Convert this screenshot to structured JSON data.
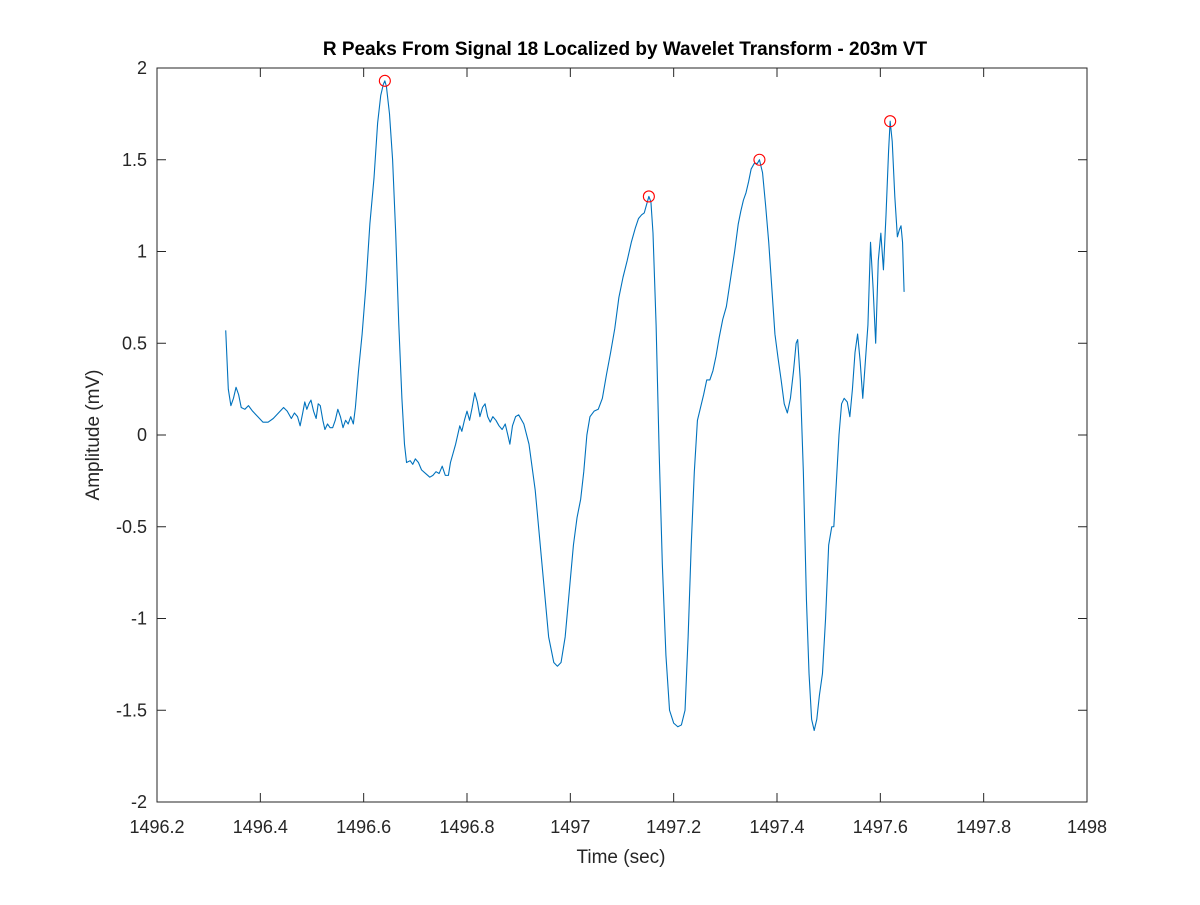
{
  "chart_data": {
    "type": "line",
    "title": "R Peaks From Signal 18 Localized by Wavelet Transform - 203m VT",
    "xlabel": "Time (sec)",
    "ylabel": "Amplitude (mV)",
    "xlim": [
      1496.2,
      1498
    ],
    "ylim": [
      -2,
      2
    ],
    "xticks": [
      1496.2,
      1496.4,
      1496.6,
      1496.8,
      1497,
      1497.2,
      1497.4,
      1497.6,
      1497.8,
      1498
    ],
    "xtick_labels": [
      "1496.2",
      "1496.4",
      "1496.6",
      "1496.8",
      "1497",
      "1497.2",
      "1497.4",
      "1497.6",
      "1497.8",
      "1498"
    ],
    "yticks": [
      -2,
      -1.5,
      -1,
      -0.5,
      0,
      0.5,
      1,
      1.5,
      2
    ],
    "ytick_labels": [
      "-2",
      "-1.5",
      "-1",
      "-0.5",
      "0",
      "0.5",
      "1",
      "1.5",
      "2"
    ],
    "grid": false,
    "box": true,
    "colors": {
      "signal": "#0072BD",
      "peaks": "#FF0000",
      "axes": "#262626"
    },
    "series": [
      {
        "marker": "none",
        "points": [
          [
            1496.333,
            0.57
          ],
          [
            1496.338,
            0.25
          ],
          [
            1496.343,
            0.16
          ],
          [
            1496.348,
            0.2
          ],
          [
            1496.353,
            0.26
          ],
          [
            1496.358,
            0.22
          ],
          [
            1496.363,
            0.15
          ],
          [
            1496.37,
            0.14
          ],
          [
            1496.377,
            0.16
          ],
          [
            1496.385,
            0.13
          ],
          [
            1496.395,
            0.1
          ],
          [
            1496.405,
            0.07
          ],
          [
            1496.415,
            0.07
          ],
          [
            1496.425,
            0.09
          ],
          [
            1496.435,
            0.12
          ],
          [
            1496.445,
            0.15
          ],
          [
            1496.452,
            0.13
          ],
          [
            1496.46,
            0.09
          ],
          [
            1496.466,
            0.12
          ],
          [
            1496.472,
            0.1
          ],
          [
            1496.477,
            0.05
          ],
          [
            1496.482,
            0.12
          ],
          [
            1496.486,
            0.18
          ],
          [
            1496.49,
            0.14
          ],
          [
            1496.494,
            0.17
          ],
          [
            1496.498,
            0.19
          ],
          [
            1496.503,
            0.13
          ],
          [
            1496.508,
            0.09
          ],
          [
            1496.512,
            0.17
          ],
          [
            1496.516,
            0.16
          ],
          [
            1496.521,
            0.08
          ],
          [
            1496.525,
            0.03
          ],
          [
            1496.53,
            0.06
          ],
          [
            1496.535,
            0.04
          ],
          [
            1496.54,
            0.04
          ],
          [
            1496.545,
            0.08
          ],
          [
            1496.55,
            0.14
          ],
          [
            1496.555,
            0.1
          ],
          [
            1496.56,
            0.04
          ],
          [
            1496.565,
            0.08
          ],
          [
            1496.57,
            0.06
          ],
          [
            1496.575,
            0.1
          ],
          [
            1496.58,
            0.06
          ],
          [
            1496.584,
            0.15
          ],
          [
            1496.59,
            0.35
          ],
          [
            1496.597,
            0.55
          ],
          [
            1496.604,
            0.8
          ],
          [
            1496.612,
            1.15
          ],
          [
            1496.62,
            1.4
          ],
          [
            1496.627,
            1.7
          ],
          [
            1496.633,
            1.85
          ],
          [
            1496.638,
            1.91
          ],
          [
            1496.641,
            1.93
          ],
          [
            1496.644,
            1.9
          ],
          [
            1496.65,
            1.75
          ],
          [
            1496.656,
            1.5
          ],
          [
            1496.662,
            1.1
          ],
          [
            1496.668,
            0.6
          ],
          [
            1496.674,
            0.2
          ],
          [
            1496.679,
            -0.05
          ],
          [
            1496.683,
            -0.15
          ],
          [
            1496.69,
            -0.14
          ],
          [
            1496.695,
            -0.16
          ],
          [
            1496.7,
            -0.13
          ],
          [
            1496.706,
            -0.15
          ],
          [
            1496.712,
            -0.19
          ],
          [
            1496.72,
            -0.21
          ],
          [
            1496.728,
            -0.23
          ],
          [
            1496.734,
            -0.22
          ],
          [
            1496.74,
            -0.2
          ],
          [
            1496.746,
            -0.21
          ],
          [
            1496.752,
            -0.17
          ],
          [
            1496.758,
            -0.22
          ],
          [
            1496.764,
            -0.22
          ],
          [
            1496.768,
            -0.15
          ],
          [
            1496.773,
            -0.1
          ],
          [
            1496.778,
            -0.05
          ],
          [
            1496.782,
            0.0
          ],
          [
            1496.786,
            0.05
          ],
          [
            1496.79,
            0.02
          ],
          [
            1496.795,
            0.08
          ],
          [
            1496.8,
            0.13
          ],
          [
            1496.805,
            0.08
          ],
          [
            1496.81,
            0.15
          ],
          [
            1496.815,
            0.23
          ],
          [
            1496.82,
            0.18
          ],
          [
            1496.825,
            0.1
          ],
          [
            1496.83,
            0.15
          ],
          [
            1496.835,
            0.17
          ],
          [
            1496.84,
            0.1
          ],
          [
            1496.845,
            0.07
          ],
          [
            1496.85,
            0.1
          ],
          [
            1496.856,
            0.08
          ],
          [
            1496.862,
            0.05
          ],
          [
            1496.868,
            0.03
          ],
          [
            1496.874,
            0.06
          ],
          [
            1496.879,
            0.0
          ],
          [
            1496.883,
            -0.05
          ],
          [
            1496.888,
            0.05
          ],
          [
            1496.894,
            0.1
          ],
          [
            1496.9,
            0.11
          ],
          [
            1496.91,
            0.06
          ],
          [
            1496.92,
            -0.05
          ],
          [
            1496.932,
            -0.3
          ],
          [
            1496.945,
            -0.7
          ],
          [
            1496.958,
            -1.1
          ],
          [
            1496.968,
            -1.24
          ],
          [
            1496.975,
            -1.26
          ],
          [
            1496.982,
            -1.24
          ],
          [
            1496.99,
            -1.1
          ],
          [
            1496.998,
            -0.85
          ],
          [
            1497.006,
            -0.6
          ],
          [
            1497.013,
            -0.45
          ],
          [
            1497.02,
            -0.35
          ],
          [
            1497.026,
            -0.2
          ],
          [
            1497.032,
            0.0
          ],
          [
            1497.038,
            0.1
          ],
          [
            1497.046,
            0.13
          ],
          [
            1497.054,
            0.14
          ],
          [
            1497.062,
            0.2
          ],
          [
            1497.07,
            0.33
          ],
          [
            1497.078,
            0.45
          ],
          [
            1497.086,
            0.58
          ],
          [
            1497.094,
            0.75
          ],
          [
            1497.102,
            0.86
          ],
          [
            1497.11,
            0.95
          ],
          [
            1497.118,
            1.05
          ],
          [
            1497.126,
            1.13
          ],
          [
            1497.132,
            1.18
          ],
          [
            1497.138,
            1.2
          ],
          [
            1497.143,
            1.21
          ],
          [
            1497.147,
            1.25
          ],
          [
            1497.152,
            1.3
          ],
          [
            1497.156,
            1.27
          ],
          [
            1497.16,
            1.1
          ],
          [
            1497.166,
            0.6
          ],
          [
            1497.172,
            -0.1
          ],
          [
            1497.178,
            -0.7
          ],
          [
            1497.185,
            -1.2
          ],
          [
            1497.192,
            -1.5
          ],
          [
            1497.2,
            -1.57
          ],
          [
            1497.208,
            -1.59
          ],
          [
            1497.215,
            -1.58
          ],
          [
            1497.222,
            -1.5
          ],
          [
            1497.228,
            -1.1
          ],
          [
            1497.234,
            -0.6
          ],
          [
            1497.24,
            -0.2
          ],
          [
            1497.246,
            0.08
          ],
          [
            1497.252,
            0.15
          ],
          [
            1497.258,
            0.22
          ],
          [
            1497.264,
            0.3
          ],
          [
            1497.27,
            0.3
          ],
          [
            1497.276,
            0.35
          ],
          [
            1497.282,
            0.43
          ],
          [
            1497.288,
            0.53
          ],
          [
            1497.295,
            0.63
          ],
          [
            1497.302,
            0.7
          ],
          [
            1497.31,
            0.85
          ],
          [
            1497.318,
            1.0
          ],
          [
            1497.325,
            1.15
          ],
          [
            1497.33,
            1.22
          ],
          [
            1497.335,
            1.28
          ],
          [
            1497.34,
            1.32
          ],
          [
            1497.345,
            1.38
          ],
          [
            1497.35,
            1.45
          ],
          [
            1497.356,
            1.48
          ],
          [
            1497.362,
            1.48
          ],
          [
            1497.366,
            1.5
          ],
          [
            1497.372,
            1.43
          ],
          [
            1497.378,
            1.25
          ],
          [
            1497.384,
            1.05
          ],
          [
            1497.39,
            0.8
          ],
          [
            1497.396,
            0.55
          ],
          [
            1497.402,
            0.42
          ],
          [
            1497.408,
            0.3
          ],
          [
            1497.414,
            0.17
          ],
          [
            1497.42,
            0.12
          ],
          [
            1497.426,
            0.2
          ],
          [
            1497.432,
            0.35
          ],
          [
            1497.437,
            0.5
          ],
          [
            1497.44,
            0.52
          ],
          [
            1497.445,
            0.3
          ],
          [
            1497.451,
            -0.2
          ],
          [
            1497.457,
            -0.9
          ],
          [
            1497.462,
            -1.3
          ],
          [
            1497.467,
            -1.55
          ],
          [
            1497.472,
            -1.61
          ],
          [
            1497.477,
            -1.55
          ],
          [
            1497.482,
            -1.42
          ],
          [
            1497.488,
            -1.3
          ],
          [
            1497.494,
            -1.0
          ],
          [
            1497.5,
            -0.6
          ],
          [
            1497.506,
            -0.5
          ],
          [
            1497.51,
            -0.5
          ],
          [
            1497.515,
            -0.25
          ],
          [
            1497.52,
            0.0
          ],
          [
            1497.525,
            0.17
          ],
          [
            1497.53,
            0.2
          ],
          [
            1497.536,
            0.18
          ],
          [
            1497.541,
            0.1
          ],
          [
            1497.546,
            0.25
          ],
          [
            1497.551,
            0.45
          ],
          [
            1497.556,
            0.55
          ],
          [
            1497.561,
            0.4
          ],
          [
            1497.566,
            0.2
          ],
          [
            1497.571,
            0.4
          ],
          [
            1497.576,
            0.6
          ],
          [
            1497.581,
            1.05
          ],
          [
            1497.586,
            0.8
          ],
          [
            1497.591,
            0.5
          ],
          [
            1497.596,
            0.95
          ],
          [
            1497.601,
            1.1
          ],
          [
            1497.606,
            0.9
          ],
          [
            1497.611,
            1.2
          ],
          [
            1497.616,
            1.55
          ],
          [
            1497.619,
            1.71
          ],
          [
            1497.623,
            1.6
          ],
          [
            1497.628,
            1.3
          ],
          [
            1497.633,
            1.08
          ],
          [
            1497.637,
            1.12
          ],
          [
            1497.64,
            1.14
          ],
          [
            1497.643,
            1.05
          ],
          [
            1497.646,
            0.78
          ]
        ]
      },
      {
        "marker": "circle",
        "points": [
          [
            1496.641,
            1.93
          ],
          [
            1497.152,
            1.3
          ],
          [
            1497.366,
            1.5
          ],
          [
            1497.619,
            1.71
          ]
        ]
      }
    ]
  }
}
